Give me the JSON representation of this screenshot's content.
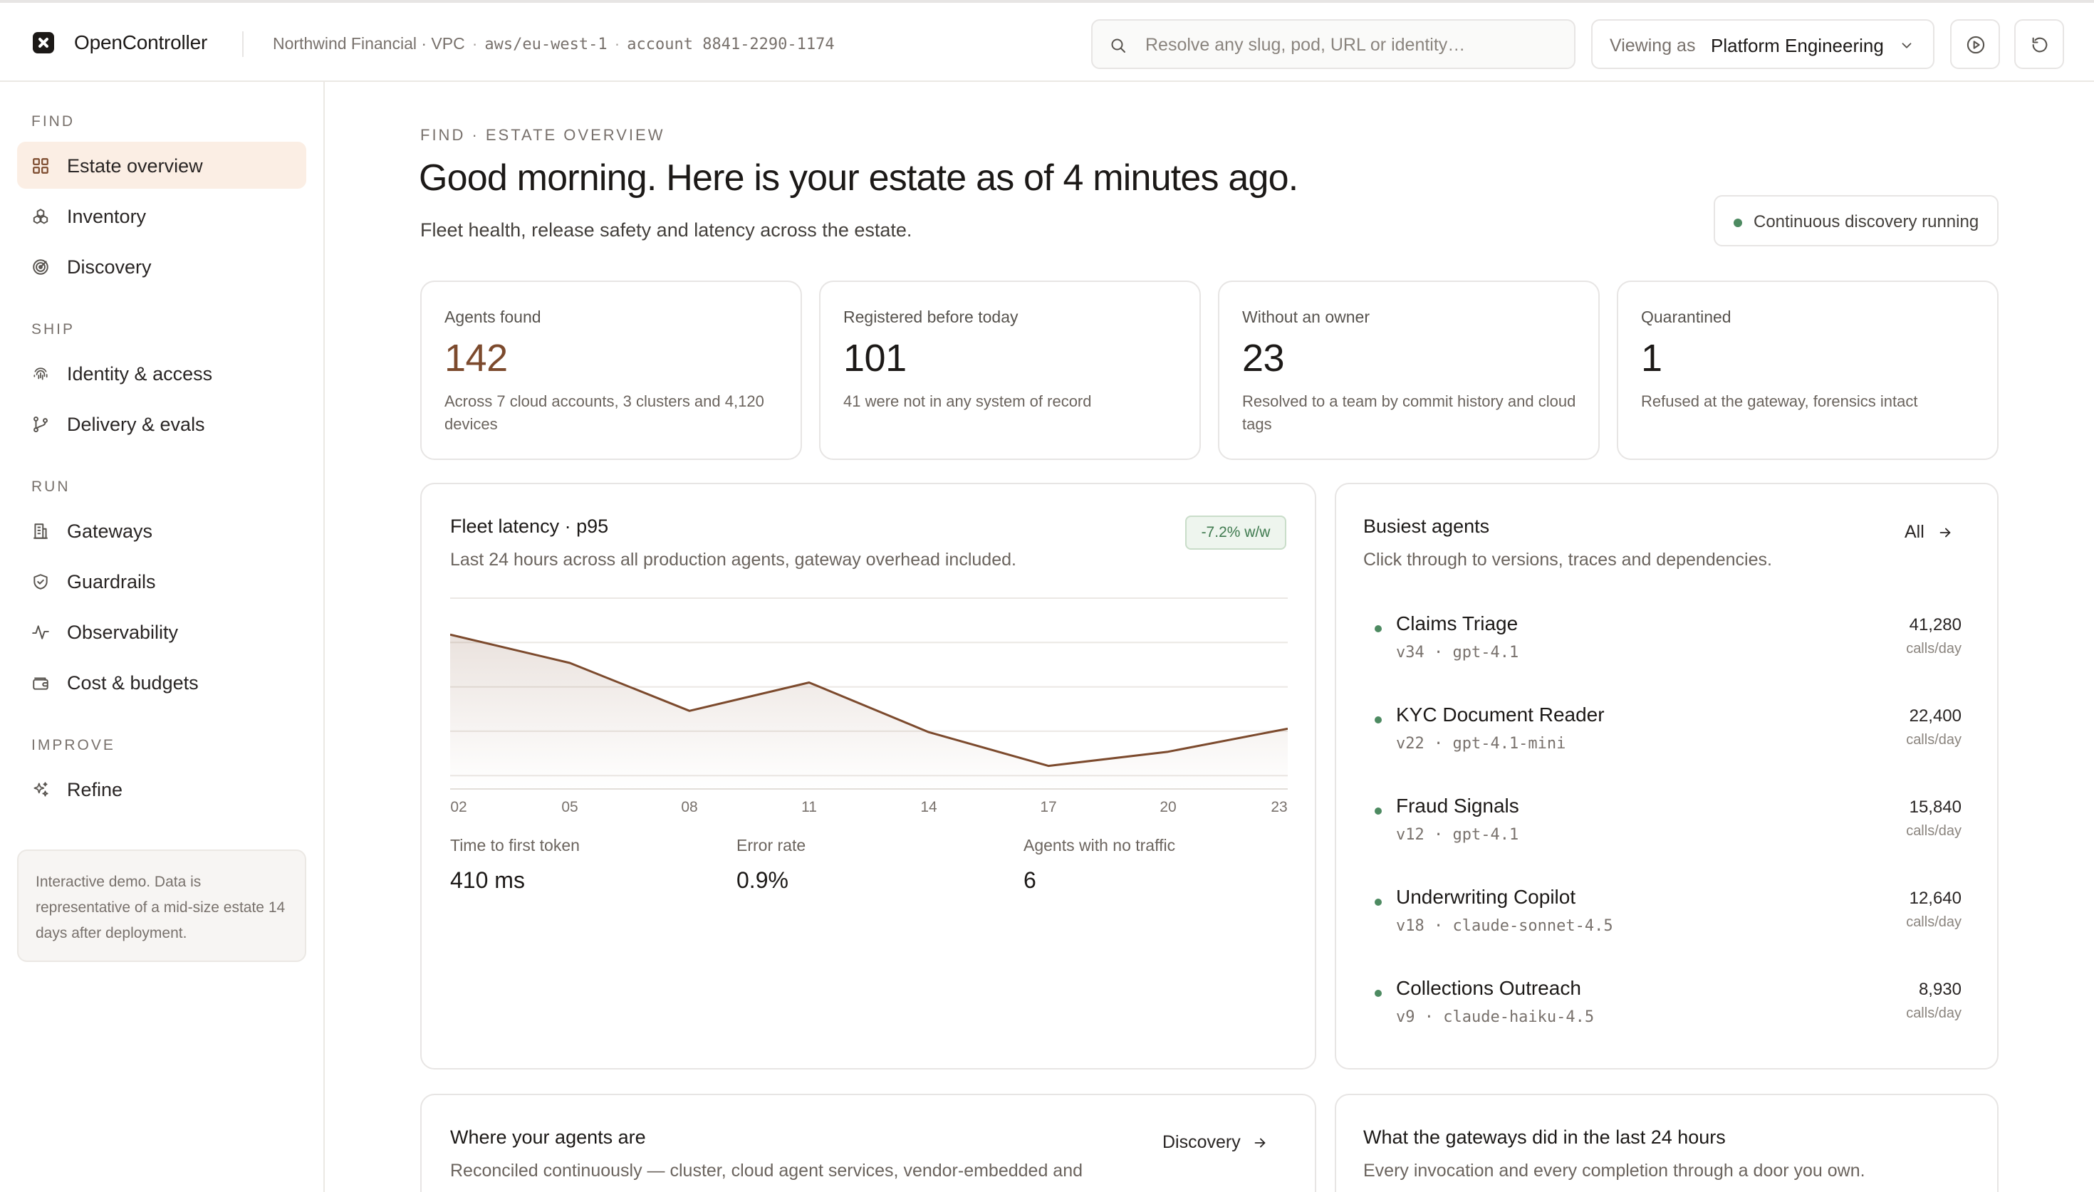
{
  "app": {
    "name": "OpenController",
    "org": "Northwind Financial · VPC",
    "region": "aws/eu-west-1",
    "account": "account 8841-2290-1174"
  },
  "search": {
    "placeholder": "Resolve any slug, pod, URL or identity…",
    "value": ""
  },
  "viewing": {
    "label": "Viewing as",
    "value": "Platform Engineering"
  },
  "icons": {
    "logo": "opencontroller-logo-icon",
    "search": "search-icon",
    "chevron": "chevron-down-icon",
    "play": "play-circle-icon",
    "refresh": "refresh-icon"
  },
  "sidebar": {
    "sections": [
      {
        "label": "FIND",
        "items": [
          {
            "label": "Estate overview",
            "icon": "grid-icon",
            "active": true
          },
          {
            "label": "Inventory",
            "icon": "cubes-icon"
          },
          {
            "label": "Discovery",
            "icon": "radar-icon"
          }
        ]
      },
      {
        "label": "SHIP",
        "items": [
          {
            "label": "Identity & access",
            "icon": "fingerprint-icon"
          },
          {
            "label": "Delivery & evals",
            "icon": "git-branch-icon"
          }
        ]
      },
      {
        "label": "RUN",
        "items": [
          {
            "label": "Gateways",
            "icon": "building-icon"
          },
          {
            "label": "Guardrails",
            "icon": "shield-check-icon"
          },
          {
            "label": "Observability",
            "icon": "activity-icon"
          },
          {
            "label": "Cost & budgets",
            "icon": "wallet-icon"
          }
        ]
      },
      {
        "label": "IMPROVE",
        "items": [
          {
            "label": "Refine",
            "icon": "sparkles-icon"
          }
        ]
      }
    ],
    "note": "Interactive demo. Data is representative of a mid-size estate 14 days after deployment."
  },
  "page": {
    "eyebrow": "FIND · ESTATE OVERVIEW",
    "title": "Good morning. Here is your estate as of 4 minutes ago.",
    "subtitle": "Fleet health, release safety and latency across the estate.",
    "status": "Continuous discovery running",
    "status_color": "#4d8a61"
  },
  "stats": [
    {
      "label": "Agents found",
      "value": "142",
      "desc": "Across 7 cloud accounts, 3 clusters and 4,120 devices",
      "accent": true
    },
    {
      "label": "Registered before today",
      "value": "101",
      "desc": "41 were not in any system of record"
    },
    {
      "label": "Without an owner",
      "value": "23",
      "desc": "Resolved to a team by commit history and cloud tags"
    },
    {
      "label": "Quarantined",
      "value": "1",
      "desc": "Refused at the gateway, forensics intact"
    }
  ],
  "latency": {
    "title": "Fleet latency · p95",
    "subtitle": "Last 24 hours across all production agents, gateway overhead included.",
    "delta": "-7.2% w/w",
    "metrics": [
      {
        "label": "Time to first token",
        "value": "410 ms"
      },
      {
        "label": "Error rate",
        "value": "0.9%"
      },
      {
        "label": "Agents with no traffic",
        "value": "6"
      }
    ]
  },
  "chart_data": {
    "type": "area",
    "title": "Fleet latency · p95",
    "xlabel": "",
    "ylabel": "",
    "x_ticks": [
      "02",
      "05",
      "08",
      "11",
      "14",
      "17",
      "20",
      "23"
    ],
    "x": [
      2,
      5,
      8,
      11,
      14,
      17,
      20,
      23
    ],
    "values": [
      0.87,
      0.71,
      0.44,
      0.6,
      0.32,
      0.13,
      0.21,
      0.34
    ],
    "ylim": [
      0,
      1
    ],
    "grid": true,
    "line_color": "#7c4a2d"
  },
  "busiest": {
    "title": "Busiest agents",
    "subtitle": "Click through to versions, traces and dependencies.",
    "link": "All",
    "agents": [
      {
        "name": "Claims Triage",
        "meta": "v34 · gpt-4.1",
        "calls": "41,280",
        "unit": "calls/day"
      },
      {
        "name": "KYC Document Reader",
        "meta": "v22 · gpt-4.1-mini",
        "calls": "22,400",
        "unit": "calls/day"
      },
      {
        "name": "Fraud Signals",
        "meta": "v12 · gpt-4.1",
        "calls": "15,840",
        "unit": "calls/day"
      },
      {
        "name": "Underwriting Copilot",
        "meta": "v18 · claude-sonnet-4.5",
        "calls": "12,640",
        "unit": "calls/day"
      },
      {
        "name": "Collections Outreach",
        "meta": "v9 · claude-haiku-4.5",
        "calls": "8,930",
        "unit": "calls/day"
      }
    ]
  },
  "where": {
    "title": "Where your agents are",
    "subtitle": "Reconciled continuously — cluster, cloud agent services, vendor-embedded and",
    "link": "Discovery"
  },
  "gateways": {
    "title": "What the gateways did in the last 24 hours",
    "subtitle": "Every invocation and every completion through a door you own."
  }
}
